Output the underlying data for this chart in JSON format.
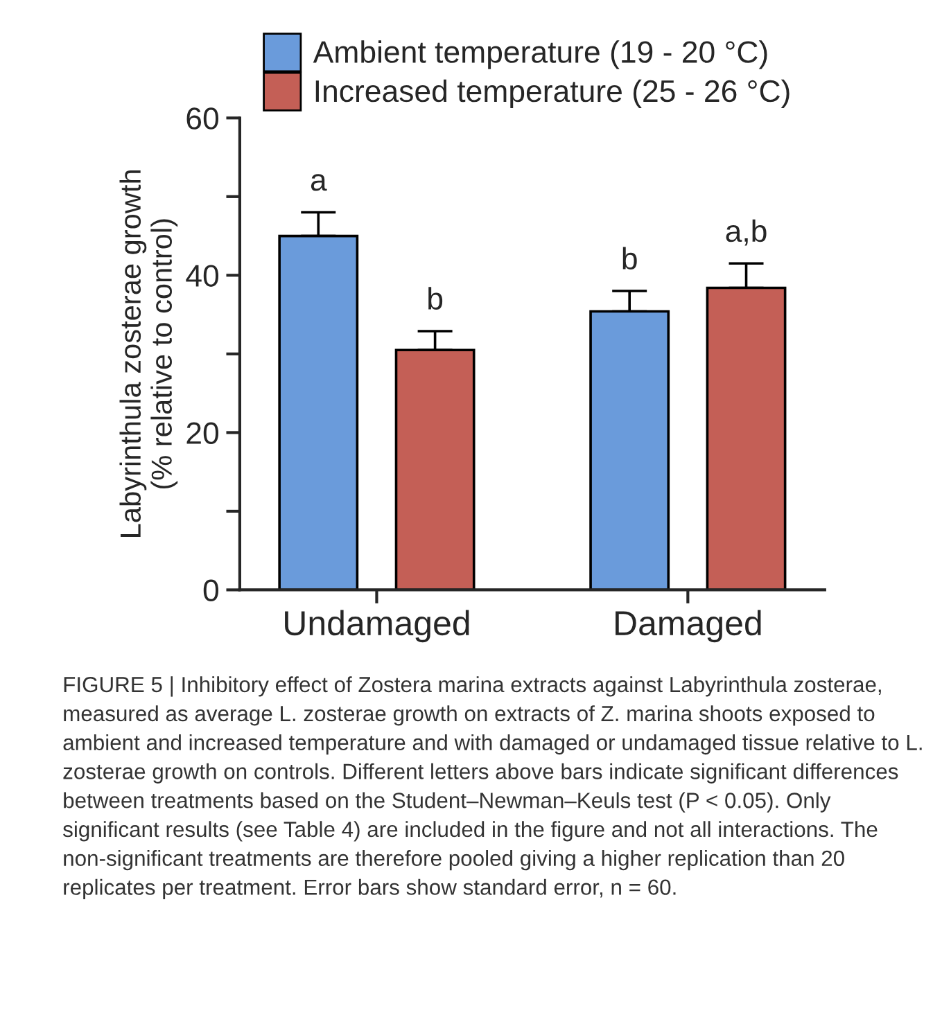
{
  "chart_data": {
    "type": "bar",
    "ylabel": "Labyrinthula zosterae growth\n(% relative to control)",
    "categories": [
      "Undamaged",
      "Damaged"
    ],
    "series": [
      {
        "name": "Ambient temperature (19 - 20 °C)",
        "color": "#6a9bdb",
        "values": [
          45,
          35.4
        ],
        "errors": [
          [
            45,
            48
          ],
          [
            35.4,
            38
          ]
        ]
      },
      {
        "name": "Increased temperature (25 - 26 °C)",
        "color": "#c45f56",
        "values": [
          30.5,
          38.4
        ],
        "errors": [
          [
            30.5,
            32.9
          ],
          [
            38.4,
            41.5
          ]
        ]
      }
    ],
    "ylim": [
      0,
      60
    ],
    "yticks": [
      0,
      {
        "value": 10,
        "label": null
      },
      20,
      {
        "value": 30,
        "label": null
      },
      40,
      {
        "value": 50,
        "label": null
      },
      60
    ],
    "grid": false,
    "legend": "top left",
    "annotations": [
      "a",
      "b",
      "b",
      "a,b",
      "FIGURE 5 | Inhibitory effect of Zostera marina extracts against Labyrinthula zosterae, measured as average L. zosterae growth on extracts of Z. marina shoots exposed to ambient and increased temperature and with damaged or undamaged tissue relative to L. zosterae growth on controls. Different letters above bars indicate significant differences between treatments based on the Student–Newman–Keuls test (P < 0.05). Only significant results (see Table 4) are included in the figure and not all interactions. The non-significant treatments are therefore pooled giving a higher replication than 20 replicates per treatment. Error bars show standard error, n = 60."
    ]
  }
}
